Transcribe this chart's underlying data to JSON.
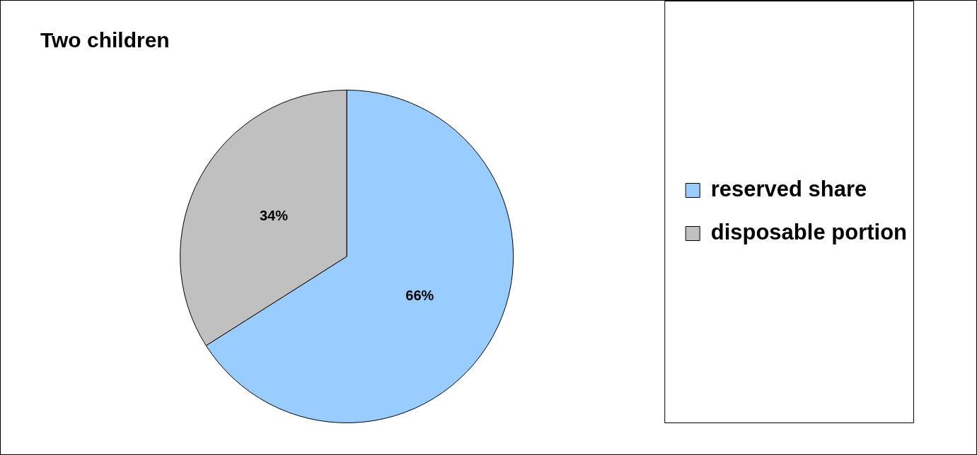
{
  "chart_data": {
    "type": "pie",
    "title": "Two children",
    "categories": [
      "reserved share",
      "disposable portion"
    ],
    "values": [
      66,
      34
    ],
    "colors": [
      "#99ccff",
      "#c0c0c0"
    ],
    "value_labels": [
      "66%",
      "34%"
    ],
    "legend": "right"
  }
}
